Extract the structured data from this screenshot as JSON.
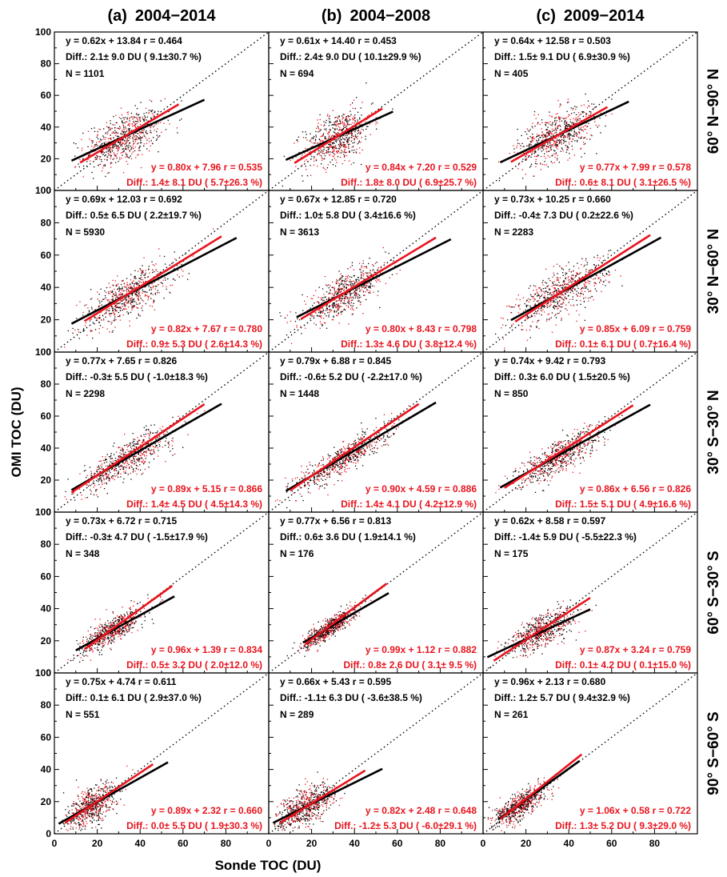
{
  "chart_data": {
    "type": "scatter",
    "xlabel": "Sonde TOC (DU)",
    "ylabel": "OMI TOC (DU)",
    "xlim": [
      0,
      100
    ],
    "ylim": [
      0,
      100
    ],
    "x_ticks": [
      "0",
      "20",
      "40",
      "60",
      "80"
    ],
    "y_ticks": [
      "0",
      "20",
      "40",
      "60",
      "80",
      "100"
    ],
    "grid": false,
    "reference_line": "1:1 dotted",
    "colors": {
      "black_series": "#000000",
      "red_series": "#e8141e"
    },
    "columns": [
      {
        "label": "(a)",
        "period": "2004−2014"
      },
      {
        "label": "(b)",
        "period": "2004−2008"
      },
      {
        "label": "(c)",
        "period": "2009−2014"
      }
    ],
    "rows": [
      "60° N−90° N",
      "30° N−60° N",
      "30° S−30° N",
      "60° S−30° S",
      "90° S−60° S"
    ],
    "panels": [
      [
        {
          "black": {
            "eq": "y = 0.62x + 13.84 r = 0.464",
            "diff": "Diff.:   2.1± 9.0 DU ( 9.1±30.7 %)",
            "n": "N =  1101",
            "slope": 0.62,
            "intercept": 13.84,
            "x_range": [
              8,
              70
            ]
          },
          "red": {
            "eq": "y = 0.80x + 7.96 r = 0.535",
            "diff": "Diff.:  1.4± 8.1 DU ( 5.7±26.3 %)",
            "slope": 0.8,
            "intercept": 7.96,
            "x_range": [
              12,
              58
            ]
          },
          "cloud": {
            "cx": 32,
            "cy": 33,
            "sx": 9,
            "sy": 9,
            "r": 0.5
          }
        },
        {
          "black": {
            "eq": "y = 0.61x + 14.40 r = 0.453",
            "diff": "Diff.:   2.4± 9.0 DU ( 10.1±29.9 %)",
            "n": "N =   694",
            "slope": 0.61,
            "intercept": 14.4,
            "x_range": [
              8,
              58
            ]
          },
          "red": {
            "eq": "y = 0.84x + 7.20 r = 0.529",
            "diff": "Diff.:  1.8± 8.0 DU ( 6.9±25.7 %)",
            "slope": 0.84,
            "intercept": 7.2,
            "x_range": [
              12,
              53
            ]
          },
          "cloud": {
            "cx": 32,
            "cy": 34,
            "sx": 8,
            "sy": 9,
            "r": 0.5
          }
        },
        {
          "black": {
            "eq": "y = 0.64x + 12.58 r = 0.503",
            "diff": "Diff.:   1.5± 9.1 DU ( 6.9±30.9 %)",
            "n": "N =   405",
            "slope": 0.64,
            "intercept": 12.58,
            "x_range": [
              8,
              68
            ]
          },
          "red": {
            "eq": "y = 0.77x + 7.99 r = 0.578",
            "diff": "Diff.:  0.6± 8.1 DU ( 3.1±26.5 %)",
            "slope": 0.77,
            "intercept": 7.99,
            "x_range": [
              13,
              58
            ]
          },
          "cloud": {
            "cx": 34,
            "cy": 35,
            "sx": 9,
            "sy": 9,
            "r": 0.55
          }
        }
      ],
      [
        {
          "black": {
            "eq": "y = 0.69x + 12.03 r = 0.692",
            "diff": "Diff.:   0.5± 6.5 DU ( 2.2±19.7 %)",
            "n": "N =  5930",
            "slope": 0.69,
            "intercept": 12.03,
            "x_range": [
              8,
              85
            ]
          },
          "red": {
            "eq": "y = 0.82x + 7.67 r = 0.780",
            "diff": "Diff.:  0.9± 5.3 DU ( 2.6±14.3 %)",
            "slope": 0.82,
            "intercept": 7.67,
            "x_range": [
              14,
              78
            ]
          },
          "cloud": {
            "cx": 34,
            "cy": 35,
            "sx": 11,
            "sy": 10,
            "r": 0.75
          }
        },
        {
          "black": {
            "eq": "y = 0.67x + 12.85 r = 0.720",
            "diff": "Diff.:   1.0± 5.8 DU ( 3.4±16.6 %)",
            "n": "N =  3613",
            "slope": 0.67,
            "intercept": 12.85,
            "x_range": [
              13,
              85
            ]
          },
          "red": {
            "eq": "y = 0.80x + 8.43 r = 0.798",
            "diff": "Diff.:  1.3± 4.6 DU ( 3.8±12.4 %)",
            "slope": 0.8,
            "intercept": 8.43,
            "x_range": [
              15,
              78
            ]
          },
          "cloud": {
            "cx": 35,
            "cy": 36,
            "sx": 10,
            "sy": 9,
            "r": 0.77
          }
        },
        {
          "black": {
            "eq": "y = 0.73x + 10.25 r = 0.660",
            "diff": "Diff.:  -0.4± 7.3 DU ( 0.2±22.6 %)",
            "n": "N =  2283",
            "slope": 0.73,
            "intercept": 10.25,
            "x_range": [
              13,
              83
            ]
          },
          "red": {
            "eq": "y = 0.85x + 6.09 r = 0.759",
            "diff": "Diff.:  0.1± 6.1 DU ( 0.7±16.4 %)",
            "slope": 0.85,
            "intercept": 6.09,
            "x_range": [
              15,
              78
            ]
          },
          "cloud": {
            "cx": 36,
            "cy": 37,
            "sx": 11,
            "sy": 10,
            "r": 0.72
          }
        }
      ],
      [
        {
          "black": {
            "eq": "y = 0.77x + 7.65 r = 0.826",
            "diff": "Diff.:  -0.3± 5.5 DU ( -1.0±18.3 %)",
            "n": "N =  2298",
            "slope": 0.77,
            "intercept": 7.65,
            "x_range": [
              8,
              78
            ]
          },
          "red": {
            "eq": "y = 0.89x + 5.15 r = 0.866",
            "diff": "Diff.:  1.4± 4.5 DU ( 4.5±14.3 %)",
            "slope": 0.89,
            "intercept": 5.15,
            "x_range": [
              8,
              70
            ]
          },
          "cloud": {
            "cx": 34,
            "cy": 34,
            "sx": 11,
            "sy": 10,
            "r": 0.85
          }
        },
        {
          "black": {
            "eq": "y = 0.79x + 6.88 r = 0.845",
            "diff": "Diff.:  -0.6± 5.2 DU ( -2.2±17.0 %)",
            "n": "N =  1448",
            "slope": 0.79,
            "intercept": 6.88,
            "x_range": [
              8,
              78
            ]
          },
          "red": {
            "eq": "y = 0.90x + 4.59 r = 0.886",
            "diff": "Diff.:  1.4± 4.1 DU ( 4.2±12.9 %)",
            "slope": 0.9,
            "intercept": 4.59,
            "x_range": [
              10,
              70
            ]
          },
          "cloud": {
            "cx": 35,
            "cy": 34,
            "sx": 11,
            "sy": 10,
            "r": 0.88
          }
        },
        {
          "black": {
            "eq": "y = 0.74x + 9.42 r = 0.793",
            "diff": "Diff.:   0.3± 6.0 DU ( 1.5±20.5 %)",
            "n": "N =   850",
            "slope": 0.74,
            "intercept": 9.42,
            "x_range": [
              8,
              78
            ]
          },
          "red": {
            "eq": "y = 0.86x + 6.56 r = 0.826",
            "diff": "Diff.:  1.5± 5.1 DU ( 4.9±16.6 %)",
            "slope": 0.86,
            "intercept": 6.56,
            "x_range": [
              10,
              70
            ]
          },
          "cloud": {
            "cx": 35,
            "cy": 35,
            "sx": 10,
            "sy": 9,
            "r": 0.82
          }
        }
      ],
      [
        {
          "black": {
            "eq": "y = 0.73x + 6.72 r = 0.715",
            "diff": "Diff.:  -0.3± 4.7 DU ( -1.5±17.9 %)",
            "n": "N =   348",
            "slope": 0.73,
            "intercept": 6.72,
            "x_range": [
              10,
              56
            ]
          },
          "red": {
            "eq": "y = 0.96x + 1.39 r = 0.834",
            "diff": "Diff.:  0.5± 3.2 DU ( 2.0±12.0 %)",
            "slope": 0.96,
            "intercept": 1.39,
            "x_range": [
              14,
              55
            ]
          },
          "cloud": {
            "cx": 27,
            "cy": 27,
            "sx": 7,
            "sy": 7,
            "r": 0.82
          }
        },
        {
          "black": {
            "eq": "y = 0.77x + 6.56 r = 0.813",
            "diff": "Diff.:   0.6± 3.6 DU ( 1.9±14.1 %)",
            "n": "N =   176",
            "slope": 0.77,
            "intercept": 6.56,
            "x_range": [
              16,
              56
            ]
          },
          "red": {
            "eq": "y = 0.99x + 1.12 r = 0.882",
            "diff": "Diff.:  0.8± 2.6 DU ( 3.1± 9.5 %)",
            "slope": 0.99,
            "intercept": 1.12,
            "x_range": [
              17,
              55
            ]
          },
          "cloud": {
            "cx": 28,
            "cy": 28,
            "sx": 6,
            "sy": 6,
            "r": 0.88
          }
        },
        {
          "black": {
            "eq": "y = 0.62x + 8.58 r = 0.597",
            "diff": "Diff.:  -1.4± 5.9 DU ( -5.5±22.3 %)",
            "n": "N =   175",
            "slope": 0.62,
            "intercept": 8.58,
            "x_range": [
              2,
              50
            ]
          },
          "red": {
            "eq": "y = 0.87x + 3.24 r = 0.759",
            "diff": "Diff.:  0.1± 4.2 DU ( 0.1±15.0 %)",
            "slope": 0.87,
            "intercept": 3.24,
            "x_range": [
              5,
              50
            ]
          },
          "cloud": {
            "cx": 28,
            "cy": 27,
            "sx": 8,
            "sy": 7,
            "r": 0.7
          }
        }
      ],
      [
        {
          "black": {
            "eq": "y = 0.75x + 4.74 r = 0.611",
            "diff": "Diff.:   0.1± 6.1 DU ( 2.9±37.0 %)",
            "n": "N =   551",
            "slope": 0.75,
            "intercept": 4.74,
            "x_range": [
              2,
              53
            ]
          },
          "red": {
            "eq": "y = 0.89x + 2.32 r = 0.660",
            "diff": "Diff.:  0.0± 5.5 DU ( 1.9±30.3 %)",
            "slope": 0.89,
            "intercept": 2.32,
            "x_range": [
              5,
              46
            ]
          },
          "cloud": {
            "cx": 17,
            "cy": 17,
            "sx": 6,
            "sy": 7,
            "r": 0.6
          }
        },
        {
          "black": {
            "eq": "y = 0.66x + 5.43 r = 0.595",
            "diff": "Diff.:  -1.1± 6.3 DU ( -3.6±38.5 %)",
            "n": "N =   289",
            "slope": 0.66,
            "intercept": 5.43,
            "x_range": [
              2,
              53
            ]
          },
          "red": {
            "eq": "y = 0.82x + 2.48 r = 0.648",
            "diff": "Diff.: -1.2± 5.3 DU ( -6.0±29.1 %)",
            "slope": 0.82,
            "intercept": 2.48,
            "x_range": [
              5,
              45
            ]
          },
          "cloud": {
            "cx": 17,
            "cy": 17,
            "sx": 7,
            "sy": 7,
            "r": 0.6
          }
        },
        {
          "black": {
            "eq": "y = 0.96x + 2.13 r = 0.680",
            "diff": "Diff.:   1.2± 5.7 DU ( 9.4±32.9 %)",
            "n": "N =   261",
            "slope": 0.96,
            "intercept": 2.13,
            "x_range": [
              7,
              45
            ]
          },
          "red": {
            "eq": "y = 1.06x + 0.58 r = 0.722",
            "diff": "Diff.:  1.3± 5.2 DU ( 9.3±29.0 %)",
            "slope": 1.06,
            "intercept": 0.58,
            "x_range": [
              8,
              46
            ]
          },
          "cloud": {
            "cx": 17,
            "cy": 18,
            "sx": 6,
            "sy": 6,
            "r": 0.75
          }
        }
      ]
    ]
  }
}
